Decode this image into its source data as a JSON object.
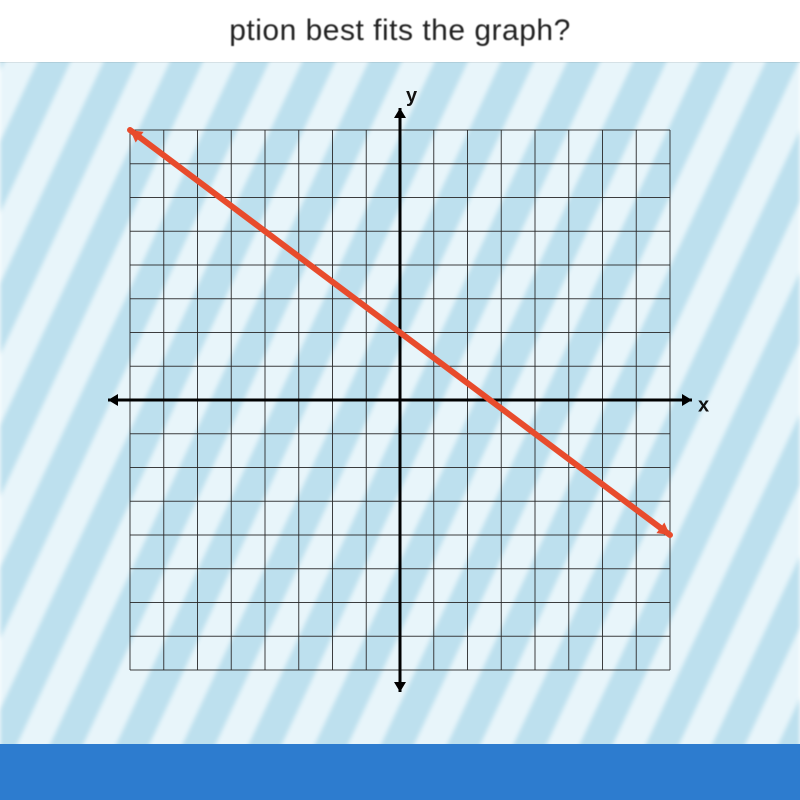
{
  "header": {
    "text_fragment": "ption best fits the graph?"
  },
  "chart": {
    "type": "line",
    "x_label": "x",
    "y_label": "y",
    "xlim": [
      -8,
      8
    ],
    "ylim": [
      -8,
      8
    ],
    "tick_step": 1,
    "grid_color": "#2a2a2a",
    "grid_stroke_width": 1,
    "axis_color": "#000000",
    "axis_stroke_width": 3,
    "arrow_size": 10,
    "background_fill": "rgba(255,255,255,0.0)",
    "line": {
      "color": "#e84b2c",
      "stroke_width": 6,
      "points": [
        {
          "x": -8,
          "y": 8
        },
        {
          "x": 8,
          "y": -4
        }
      ],
      "start_arrow": true,
      "end_arrow": true
    },
    "label_fontsize": 20,
    "label_color": "#111111"
  },
  "colors": {
    "page_bg_light": "#e8f5fa",
    "page_bg_dark": "#bde0ee",
    "bottom_band": "#2d7ccf",
    "header_bg": "#ffffff"
  }
}
